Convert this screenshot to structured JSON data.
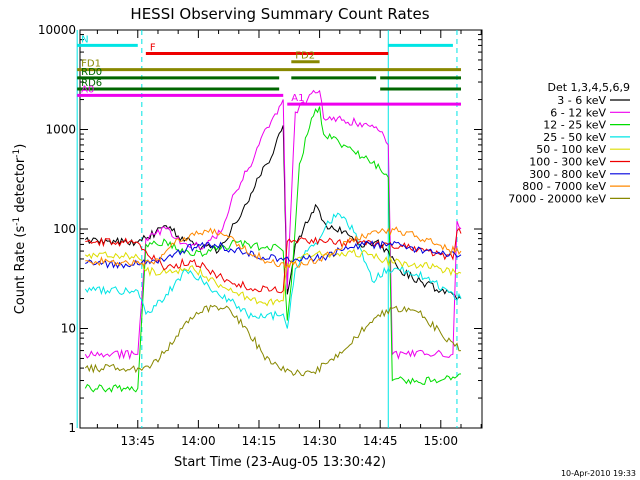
{
  "chart_data": {
    "type": "line",
    "title": "HESSI Observing Summary Count Rates",
    "xlabel": "Start Time (23-Aug-05 13:30:42)",
    "ylabel_main": "Count Rate (s",
    "ylabel_sup1": "-1",
    "ylabel_mid": " detector",
    "ylabel_sup2": "-1",
    "ylabel_end": ")",
    "y_scale": "log",
    "ylim": [
      1,
      10000
    ],
    "xlim": [
      "13:30",
      "15:10"
    ],
    "x_ticks": [
      "13:45",
      "14:00",
      "14:15",
      "14:30",
      "14:45",
      "15:00"
    ],
    "y_ticks": [
      "1",
      "10",
      "100",
      "1000",
      "10000"
    ],
    "legend_title": "Det 1,3,4,5,6,9",
    "legend_position": "right",
    "footer_date": "10-Apr-2010 19:33",
    "series": [
      {
        "name": "3 - 6 keV",
        "color": "#000000",
        "points": [
          [
            "13:32",
            78
          ],
          [
            "13:38",
            76
          ],
          [
            "13:45",
            74
          ],
          [
            "13:47",
            80
          ],
          [
            "13:52",
            108
          ],
          [
            "13:55",
            85
          ],
          [
            "14:00",
            68
          ],
          [
            "14:05",
            60
          ],
          [
            "14:08",
            95
          ],
          [
            "14:12",
            180
          ],
          [
            "14:15",
            330
          ],
          [
            "14:18",
            520
          ],
          [
            "14:21",
            1100
          ],
          [
            "14:22",
            22
          ],
          [
            "14:24",
            70
          ],
          [
            "14:26",
            100
          ],
          [
            "14:28",
            145
          ],
          [
            "14:29",
            175
          ],
          [
            "14:30",
            150
          ],
          [
            "14:32",
            100
          ],
          [
            "14:36",
            95
          ],
          [
            "14:40",
            70
          ],
          [
            "14:44",
            75
          ],
          [
            "14:47",
            60
          ],
          [
            "14:50",
            38
          ],
          [
            "14:55",
            30
          ],
          [
            "15:00",
            24
          ],
          [
            "15:03",
            22
          ],
          [
            "15:05",
            20
          ]
        ]
      },
      {
        "name": "6 - 12 keV",
        "color": "#ee00ee",
        "points": [
          [
            "13:32",
            5.5
          ],
          [
            "13:45",
            5.5
          ],
          [
            "13:47",
            80
          ],
          [
            "13:52",
            100
          ],
          [
            "13:58",
            65
          ],
          [
            "14:02",
            70
          ],
          [
            "14:06",
            100
          ],
          [
            "14:09",
            230
          ],
          [
            "14:12",
            380
          ],
          [
            "14:15",
            700
          ],
          [
            "14:18",
            1200
          ],
          [
            "14:20",
            1700
          ],
          [
            "14:21",
            2000
          ],
          [
            "14:22",
            25
          ],
          [
            "14:24",
            1500
          ],
          [
            "14:27",
            2000
          ],
          [
            "14:28",
            2300
          ],
          [
            "14:30",
            2450
          ],
          [
            "14:31",
            1300
          ],
          [
            "14:36",
            1250
          ],
          [
            "14:42",
            1100
          ],
          [
            "14:45",
            950
          ],
          [
            "14:47",
            700
          ],
          [
            "14:48",
            5.5
          ],
          [
            "15:03",
            5.5
          ],
          [
            "15:04",
            120
          ],
          [
            "15:05",
            100
          ]
        ]
      },
      {
        "name": "12 - 25 keV",
        "color": "#00dd00",
        "points": [
          [
            "13:32",
            2.5
          ],
          [
            "13:45",
            2.5
          ],
          [
            "13:47",
            70
          ],
          [
            "13:52",
            75
          ],
          [
            "13:58",
            55
          ],
          [
            "14:03",
            60
          ],
          [
            "14:08",
            70
          ],
          [
            "14:12",
            72
          ],
          [
            "14:16",
            65
          ],
          [
            "14:20",
            65
          ],
          [
            "14:21",
            60
          ],
          [
            "14:22",
            12
          ],
          [
            "14:23",
            28
          ],
          [
            "14:25",
            450
          ],
          [
            "14:27",
            900
          ],
          [
            "14:28",
            1300
          ],
          [
            "14:30",
            1700
          ],
          [
            "14:31",
            900
          ],
          [
            "14:36",
            700
          ],
          [
            "14:42",
            500
          ],
          [
            "14:45",
            400
          ],
          [
            "14:47",
            330
          ],
          [
            "14:48",
            3
          ],
          [
            "15:00",
            3
          ],
          [
            "15:05",
            3.5
          ]
        ]
      },
      {
        "name": "25 - 50 keV",
        "color": "#00e5e5",
        "points": [
          [
            "13:32",
            25
          ],
          [
            "13:40",
            24
          ],
          [
            "13:45",
            24
          ],
          [
            "13:47",
            14
          ],
          [
            "13:52",
            22
          ],
          [
            "13:57",
            38
          ],
          [
            "14:01",
            30
          ],
          [
            "14:05",
            22
          ],
          [
            "14:09",
            18
          ],
          [
            "14:12",
            14
          ],
          [
            "14:16",
            13
          ],
          [
            "14:21",
            14
          ],
          [
            "14:22",
            10
          ],
          [
            "14:24",
            40
          ],
          [
            "14:27",
            60
          ],
          [
            "14:30",
            80
          ],
          [
            "14:32",
            120
          ],
          [
            "14:35",
            140
          ],
          [
            "14:39",
            90
          ],
          [
            "14:43",
            30
          ],
          [
            "14:47",
            40
          ],
          [
            "14:52",
            38
          ],
          [
            "14:58",
            30
          ],
          [
            "15:02",
            23
          ],
          [
            "15:05",
            20
          ]
        ]
      },
      {
        "name": "50 - 100 keV",
        "color": "#dddd00",
        "points": [
          [
            "13:32",
            55
          ],
          [
            "13:40",
            54
          ],
          [
            "13:45",
            52
          ],
          [
            "13:47",
            38
          ],
          [
            "13:52",
            36
          ],
          [
            "13:58",
            42
          ],
          [
            "14:02",
            33
          ],
          [
            "14:07",
            25
          ],
          [
            "14:12",
            21
          ],
          [
            "14:16",
            18
          ],
          [
            "14:21",
            19
          ],
          [
            "14:22",
            45
          ],
          [
            "14:26",
            55
          ],
          [
            "14:30",
            60
          ],
          [
            "14:34",
            55
          ],
          [
            "14:38",
            58
          ],
          [
            "14:42",
            55
          ],
          [
            "14:46",
            48
          ],
          [
            "14:50",
            46
          ],
          [
            "14:55",
            44
          ],
          [
            "15:00",
            40
          ],
          [
            "15:05",
            36
          ]
        ]
      },
      {
        "name": "100 - 300 keV",
        "color": "#ee0000",
        "points": [
          [
            "13:32",
            75
          ],
          [
            "13:40",
            74
          ],
          [
            "13:45",
            73
          ],
          [
            "13:47",
            60
          ],
          [
            "13:52",
            40
          ],
          [
            "13:58",
            48
          ],
          [
            "14:02",
            40
          ],
          [
            "14:06",
            32
          ],
          [
            "14:10",
            28
          ],
          [
            "14:14",
            25
          ],
          [
            "14:18",
            24
          ],
          [
            "14:21",
            24
          ],
          [
            "14:22",
            75
          ],
          [
            "14:28",
            78
          ],
          [
            "14:32",
            75
          ],
          [
            "14:36",
            72
          ],
          [
            "14:40",
            75
          ],
          [
            "14:44",
            72
          ],
          [
            "14:47",
            70
          ],
          [
            "14:50",
            68
          ],
          [
            "14:56",
            60
          ],
          [
            "15:00",
            55
          ],
          [
            "15:03",
            50
          ],
          [
            "15:04",
            95
          ],
          [
            "15:05",
            90
          ]
        ]
      },
      {
        "name": "300 - 800 keV",
        "color": "#0000dd",
        "points": [
          [
            "13:32",
            45
          ],
          [
            "13:38",
            45
          ],
          [
            "13:45",
            44
          ],
          [
            "13:48",
            45
          ],
          [
            "13:52",
            50
          ],
          [
            "13:56",
            60
          ],
          [
            "14:00",
            70
          ],
          [
            "14:04",
            70
          ],
          [
            "14:08",
            63
          ],
          [
            "14:12",
            58
          ],
          [
            "14:16",
            52
          ],
          [
            "14:20",
            50
          ],
          [
            "14:24",
            50
          ],
          [
            "14:28",
            50
          ],
          [
            "14:32",
            54
          ],
          [
            "14:36",
            62
          ],
          [
            "14:40",
            68
          ],
          [
            "14:44",
            70
          ],
          [
            "14:48",
            69
          ],
          [
            "14:52",
            65
          ],
          [
            "14:56",
            60
          ],
          [
            "15:00",
            56
          ],
          [
            "15:05",
            55
          ]
        ]
      },
      {
        "name": "800 - 7000 keV",
        "color": "#ff8800",
        "points": [
          [
            "13:32",
            48
          ],
          [
            "13:40",
            46
          ],
          [
            "13:46",
            45
          ],
          [
            "13:50",
            50
          ],
          [
            "13:54",
            70
          ],
          [
            "13:58",
            88
          ],
          [
            "14:02",
            96
          ],
          [
            "14:06",
            88
          ],
          [
            "14:10",
            70
          ],
          [
            "14:14",
            55
          ],
          [
            "14:18",
            46
          ],
          [
            "14:22",
            43
          ],
          [
            "14:26",
            44
          ],
          [
            "14:30",
            50
          ],
          [
            "14:34",
            62
          ],
          [
            "14:38",
            78
          ],
          [
            "14:42",
            90
          ],
          [
            "14:46",
            96
          ],
          [
            "14:50",
            95
          ],
          [
            "14:54",
            85
          ],
          [
            "14:58",
            72
          ],
          [
            "15:02",
            62
          ],
          [
            "15:05",
            60
          ]
        ]
      },
      {
        "name": "7000 - 20000 keV",
        "color": "#888800",
        "points": [
          [
            "13:32",
            4
          ],
          [
            "13:40",
            4
          ],
          [
            "13:45",
            4
          ],
          [
            "13:48",
            4
          ],
          [
            "13:52",
            6
          ],
          [
            "13:56",
            10
          ],
          [
            "14:00",
            14
          ],
          [
            "14:04",
            17
          ],
          [
            "14:08",
            15
          ],
          [
            "14:12",
            10
          ],
          [
            "14:16",
            5.5
          ],
          [
            "14:20",
            4
          ],
          [
            "14:24",
            3.5
          ],
          [
            "14:28",
            3.6
          ],
          [
            "14:32",
            4.5
          ],
          [
            "14:36",
            6
          ],
          [
            "14:40",
            9
          ],
          [
            "14:44",
            13
          ],
          [
            "14:48",
            16
          ],
          [
            "14:52",
            16
          ],
          [
            "14:56",
            13
          ],
          [
            "15:00",
            9
          ],
          [
            "15:05",
            6
          ]
        ]
      }
    ],
    "flag_bars": [
      {
        "label": "N",
        "color": "#00e5e5",
        "label_color": "#00e5e5",
        "y": 7000,
        "segments": [
          [
            "13:30",
            "13:45"
          ],
          [
            "14:47",
            "15:03"
          ]
        ]
      },
      {
        "label": "F",
        "color": "#ee0000",
        "label_color": "#ee0000",
        "y": 5800,
        "segments": [
          [
            "13:47",
            "14:47"
          ]
        ]
      },
      {
        "label": "FD1",
        "color": "#888800",
        "label_color": "#888800",
        "y": 4000,
        "segments": [
          [
            "13:30",
            "15:05"
          ]
        ]
      },
      {
        "label": "FD2",
        "color": "#888800",
        "label_color": "#888800",
        "y": 4800,
        "segments": [
          [
            "14:23",
            "14:30"
          ]
        ]
      },
      {
        "label": "RD0",
        "color": "#006600",
        "label_color": "#006600",
        "y": 3300,
        "segments": [
          [
            "13:30",
            "14:20"
          ],
          [
            "14:23",
            "14:44"
          ],
          [
            "14:45",
            "15:05"
          ]
        ]
      },
      {
        "label": "RD6",
        "color": "#006600",
        "label_color": "#006600",
        "y": 2550,
        "segments": [
          [
            "13:30",
            "14:20"
          ],
          [
            "14:45",
            "15:05"
          ]
        ]
      },
      {
        "label": "A0",
        "color": "#ee00ee",
        "label_color": "#ee00ee",
        "y": 2200,
        "segments": [
          [
            "13:30",
            "14:21"
          ]
        ]
      },
      {
        "label": "A1",
        "color": "#ee00ee",
        "label_color": "#ee00ee",
        "y": 1800,
        "segments": [
          [
            "14:22",
            "15:05"
          ]
        ]
      }
    ],
    "vertical_markers": [
      {
        "x": "13:46",
        "color": "#00e5e5",
        "style": "dashed"
      },
      {
        "x": "14:47",
        "color": "#00e5e5",
        "style": "solid"
      },
      {
        "x": "15:04",
        "color": "#00e5e5",
        "style": "dashed"
      },
      {
        "x": "13:30",
        "color": "#00e5e5",
        "style": "solid"
      }
    ]
  }
}
